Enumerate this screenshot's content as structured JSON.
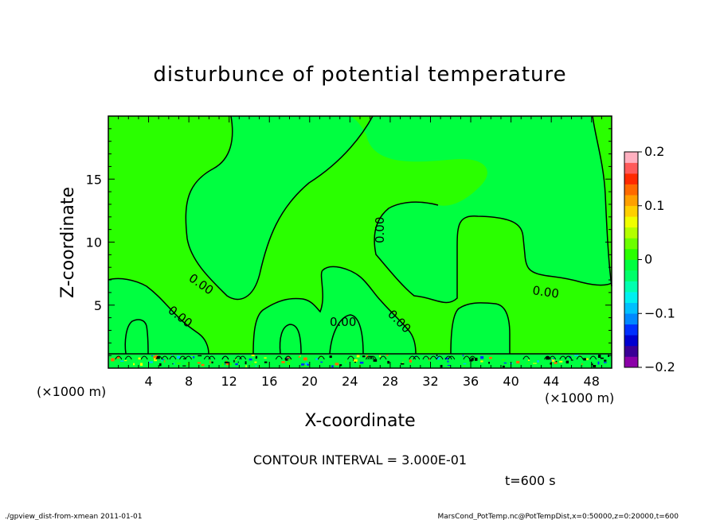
{
  "chart_data": {
    "type": "contour",
    "title": "disturbunce of potential temperature",
    "xlabel": "X-coordinate",
    "ylabel": "Z-coordinate",
    "x_unit_label": "(×1000 m)",
    "z_unit_label": "(×1000 m)",
    "xlim": [
      0,
      50
    ],
    "ylim": [
      0,
      20
    ],
    "x_ticks": [
      4,
      8,
      12,
      16,
      20,
      24,
      28,
      32,
      36,
      40,
      44,
      48
    ],
    "y_ticks": [
      5,
      10,
      15
    ],
    "contour_interval_text": "CONTOUR INTERVAL = 3.000E-01",
    "time_text": "t=600 s",
    "contour_label_text": "0.00",
    "colorbar": {
      "range": [
        -0.2,
        0.2
      ],
      "tick_labels": [
        "0.2",
        "0.1",
        "0",
        "−0.1",
        "−0.2"
      ],
      "colors": [
        "#8b00a8",
        "#3a0096",
        "#0000d0",
        "#0030ff",
        "#0088ff",
        "#00c0ff",
        "#00f0f0",
        "#00ffb0",
        "#00ff6a",
        "#00ff40",
        "#2aff00",
        "#6cff00",
        "#b4ff00",
        "#f0ff00",
        "#ffd000",
        "#ffa000",
        "#ff6a00",
        "#ff2a00",
        "#ff5a5a",
        "#ffb0c0"
      ]
    },
    "field_colors": {
      "positive": "#2aff00",
      "negative": "#00ff40"
    }
  },
  "footer": {
    "left": "./gpview_dist-from-xmean  2011-01-01",
    "right": "MarsCond_PotTemp.nc@PotTempDist,x=0:50000,z=0:20000,t=600"
  }
}
